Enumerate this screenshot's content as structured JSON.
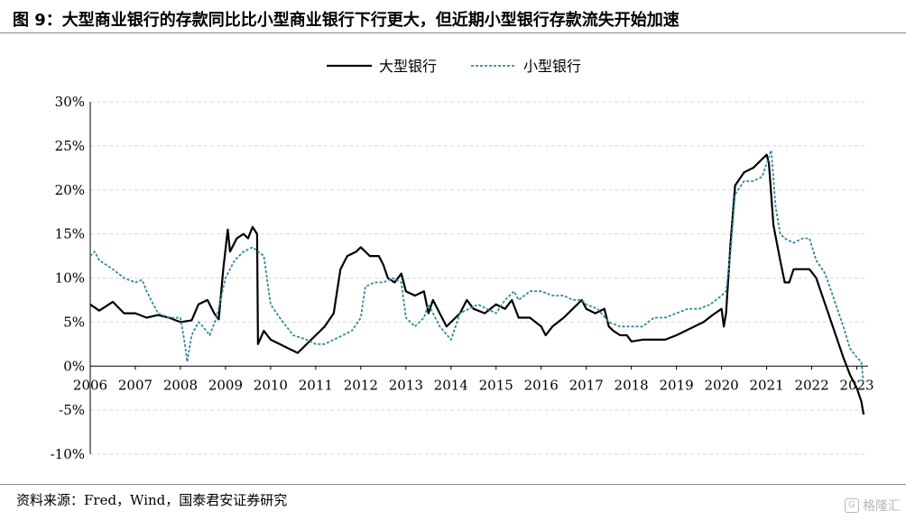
{
  "header": {
    "title": "图 9：大型商业银行的存款同比比小型商业银行下行更大，但近期小型银行存款流失开始加速"
  },
  "footer": {
    "source": "资料来源：Fred，Wind，国泰君安证券研究",
    "watermark": "格隆汇",
    "watermark_icon": "glh-logo-icon"
  },
  "colors": {
    "large_bank": "#000000",
    "small_bank": "#2e8b9a",
    "grid": "#d9d9d9",
    "axis": "#000000"
  },
  "chart_data": {
    "type": "line",
    "ylim": [
      -10,
      30
    ],
    "xlim": [
      2006,
      2023.25
    ],
    "yticks": [
      -10,
      -5,
      0,
      5,
      10,
      15,
      20,
      25,
      30
    ],
    "ytick_labels": [
      "-10%",
      "-5%",
      "0%",
      "5%",
      "10%",
      "15%",
      "20%",
      "25%",
      "30%"
    ],
    "xticks": [
      2006,
      2007,
      2008,
      2009,
      2010,
      2011,
      2012,
      2013,
      2014,
      2015,
      2016,
      2017,
      2018,
      2019,
      2020,
      2021,
      2022,
      2023
    ],
    "xtick_labels": [
      "2006",
      "2007",
      "2008",
      "2009",
      "2010",
      "2011",
      "2012",
      "2013",
      "2014",
      "2015",
      "2016",
      "2017",
      "2018",
      "2019",
      "2020",
      "2021",
      "2022",
      "2023"
    ],
    "grid": "horizontal dashed",
    "legend_position": "top-center",
    "series": [
      {
        "name": "大型银行",
        "style": "solid",
        "points": [
          [
            2006.0,
            7.0
          ],
          [
            2006.2,
            6.3
          ],
          [
            2006.5,
            7.3
          ],
          [
            2006.75,
            6.0
          ],
          [
            2007.0,
            6.0
          ],
          [
            2007.25,
            5.5
          ],
          [
            2007.5,
            5.8
          ],
          [
            2007.75,
            5.5
          ],
          [
            2008.0,
            5.0
          ],
          [
            2008.25,
            5.2
          ],
          [
            2008.4,
            7.0
          ],
          [
            2008.6,
            7.5
          ],
          [
            2008.75,
            6.0
          ],
          [
            2008.85,
            5.3
          ],
          [
            2008.95,
            11.0
          ],
          [
            2009.05,
            15.5
          ],
          [
            2009.1,
            13.0
          ],
          [
            2009.25,
            14.5
          ],
          [
            2009.4,
            15.0
          ],
          [
            2009.5,
            14.5
          ],
          [
            2009.6,
            15.8
          ],
          [
            2009.7,
            15.0
          ],
          [
            2009.72,
            2.5
          ],
          [
            2009.85,
            4.0
          ],
          [
            2010.0,
            3.0
          ],
          [
            2010.2,
            2.5
          ],
          [
            2010.4,
            2.0
          ],
          [
            2010.6,
            1.5
          ],
          [
            2010.8,
            2.5
          ],
          [
            2011.0,
            3.5
          ],
          [
            2011.2,
            4.5
          ],
          [
            2011.4,
            6.0
          ],
          [
            2011.55,
            11.0
          ],
          [
            2011.7,
            12.5
          ],
          [
            2011.9,
            13.0
          ],
          [
            2012.0,
            13.5
          ],
          [
            2012.2,
            12.5
          ],
          [
            2012.4,
            12.5
          ],
          [
            2012.5,
            11.5
          ],
          [
            2012.6,
            10.0
          ],
          [
            2012.75,
            9.5
          ],
          [
            2012.9,
            10.5
          ],
          [
            2013.0,
            8.5
          ],
          [
            2013.2,
            8.0
          ],
          [
            2013.4,
            8.5
          ],
          [
            2013.5,
            6.0
          ],
          [
            2013.6,
            7.5
          ],
          [
            2013.75,
            6.0
          ],
          [
            2013.9,
            4.5
          ],
          [
            2014.0,
            5.0
          ],
          [
            2014.2,
            6.0
          ],
          [
            2014.35,
            7.5
          ],
          [
            2014.5,
            6.5
          ],
          [
            2014.75,
            6.0
          ],
          [
            2015.0,
            7.0
          ],
          [
            2015.2,
            6.5
          ],
          [
            2015.35,
            7.5
          ],
          [
            2015.5,
            5.5
          ],
          [
            2015.75,
            5.5
          ],
          [
            2016.0,
            4.5
          ],
          [
            2016.1,
            3.5
          ],
          [
            2016.25,
            4.5
          ],
          [
            2016.5,
            5.5
          ],
          [
            2016.7,
            6.5
          ],
          [
            2016.9,
            7.5
          ],
          [
            2017.0,
            6.5
          ],
          [
            2017.2,
            6.0
          ],
          [
            2017.4,
            6.5
          ],
          [
            2017.5,
            4.5
          ],
          [
            2017.6,
            4.0
          ],
          [
            2017.75,
            3.5
          ],
          [
            2017.9,
            3.5
          ],
          [
            2018.0,
            2.8
          ],
          [
            2018.25,
            3.0
          ],
          [
            2018.5,
            3.0
          ],
          [
            2018.75,
            3.0
          ],
          [
            2019.0,
            3.5
          ],
          [
            2019.2,
            4.0
          ],
          [
            2019.4,
            4.5
          ],
          [
            2019.6,
            5.0
          ],
          [
            2019.8,
            5.8
          ],
          [
            2020.0,
            6.5
          ],
          [
            2020.05,
            4.5
          ],
          [
            2020.1,
            6.0
          ],
          [
            2020.2,
            14.0
          ],
          [
            2020.3,
            20.5
          ],
          [
            2020.5,
            22.0
          ],
          [
            2020.7,
            22.5
          ],
          [
            2020.9,
            23.5
          ],
          [
            2021.0,
            24.0
          ],
          [
            2021.05,
            23.0
          ],
          [
            2021.15,
            16.0
          ],
          [
            2021.3,
            12.0
          ],
          [
            2021.4,
            9.5
          ],
          [
            2021.5,
            9.5
          ],
          [
            2021.6,
            11.0
          ],
          [
            2021.75,
            11.0
          ],
          [
            2021.95,
            11.0
          ],
          [
            2022.1,
            10.0
          ],
          [
            2022.3,
            7.0
          ],
          [
            2022.5,
            4.0
          ],
          [
            2022.7,
            1.0
          ],
          [
            2022.85,
            -1.0
          ],
          [
            2023.0,
            -2.5
          ],
          [
            2023.1,
            -4.0
          ],
          [
            2023.15,
            -5.5
          ]
        ]
      },
      {
        "name": "小型银行",
        "style": "dashed",
        "points": [
          [
            2006.0,
            12.5
          ],
          [
            2006.1,
            13.0
          ],
          [
            2006.2,
            12.0
          ],
          [
            2006.5,
            11.0
          ],
          [
            2006.75,
            10.0
          ],
          [
            2007.0,
            9.5
          ],
          [
            2007.15,
            9.8
          ],
          [
            2007.25,
            8.5
          ],
          [
            2007.4,
            7.0
          ],
          [
            2007.5,
            6.0
          ],
          [
            2007.75,
            5.5
          ],
          [
            2008.0,
            5.5
          ],
          [
            2008.1,
            2.5
          ],
          [
            2008.15,
            0.5
          ],
          [
            2008.25,
            3.5
          ],
          [
            2008.4,
            5.0
          ],
          [
            2008.5,
            4.5
          ],
          [
            2008.65,
            3.5
          ],
          [
            2008.8,
            5.5
          ],
          [
            2009.0,
            10.0
          ],
          [
            2009.2,
            12.0
          ],
          [
            2009.4,
            13.0
          ],
          [
            2009.6,
            13.5
          ],
          [
            2009.85,
            12.5
          ],
          [
            2010.0,
            7.0
          ],
          [
            2010.2,
            5.5
          ],
          [
            2010.5,
            3.5
          ],
          [
            2010.8,
            3.0
          ],
          [
            2011.0,
            2.5
          ],
          [
            2011.2,
            2.5
          ],
          [
            2011.4,
            3.0
          ],
          [
            2011.6,
            3.5
          ],
          [
            2011.8,
            4.0
          ],
          [
            2012.0,
            5.5
          ],
          [
            2012.1,
            9.0
          ],
          [
            2012.3,
            9.5
          ],
          [
            2012.5,
            9.5
          ],
          [
            2012.7,
            10.0
          ],
          [
            2012.9,
            9.5
          ],
          [
            2013.0,
            5.5
          ],
          [
            2013.2,
            4.5
          ],
          [
            2013.4,
            5.5
          ],
          [
            2013.5,
            7.0
          ],
          [
            2013.75,
            4.5
          ],
          [
            2014.0,
            3.0
          ],
          [
            2014.2,
            6.0
          ],
          [
            2014.4,
            6.5
          ],
          [
            2014.6,
            7.0
          ],
          [
            2014.8,
            6.5
          ],
          [
            2015.0,
            6.0
          ],
          [
            2015.2,
            7.5
          ],
          [
            2015.4,
            8.5
          ],
          [
            2015.5,
            7.5
          ],
          [
            2015.75,
            8.5
          ],
          [
            2016.0,
            8.5
          ],
          [
            2016.25,
            8.0
          ],
          [
            2016.5,
            8.0
          ],
          [
            2016.7,
            7.5
          ],
          [
            2016.9,
            7.5
          ],
          [
            2017.0,
            7.0
          ],
          [
            2017.25,
            6.5
          ],
          [
            2017.5,
            5.0
          ],
          [
            2017.75,
            4.5
          ],
          [
            2018.0,
            4.5
          ],
          [
            2018.25,
            4.5
          ],
          [
            2018.5,
            5.5
          ],
          [
            2018.75,
            5.5
          ],
          [
            2019.0,
            6.0
          ],
          [
            2019.25,
            6.5
          ],
          [
            2019.5,
            6.5
          ],
          [
            2019.75,
            7.0
          ],
          [
            2020.0,
            8.0
          ],
          [
            2020.1,
            8.5
          ],
          [
            2020.2,
            13.0
          ],
          [
            2020.3,
            19.5
          ],
          [
            2020.5,
            21.0
          ],
          [
            2020.7,
            21.0
          ],
          [
            2020.9,
            21.5
          ],
          [
            2021.0,
            23.0
          ],
          [
            2021.1,
            24.5
          ],
          [
            2021.2,
            18.0
          ],
          [
            2021.3,
            15.0
          ],
          [
            2021.4,
            14.5
          ],
          [
            2021.6,
            14.0
          ],
          [
            2021.8,
            14.5
          ],
          [
            2021.95,
            14.5
          ],
          [
            2022.1,
            12.0
          ],
          [
            2022.3,
            10.5
          ],
          [
            2022.5,
            7.5
          ],
          [
            2022.7,
            4.5
          ],
          [
            2022.85,
            2.0
          ],
          [
            2023.0,
            1.0
          ],
          [
            2023.1,
            0.5
          ],
          [
            2023.15,
            -2.0
          ]
        ]
      }
    ]
  }
}
